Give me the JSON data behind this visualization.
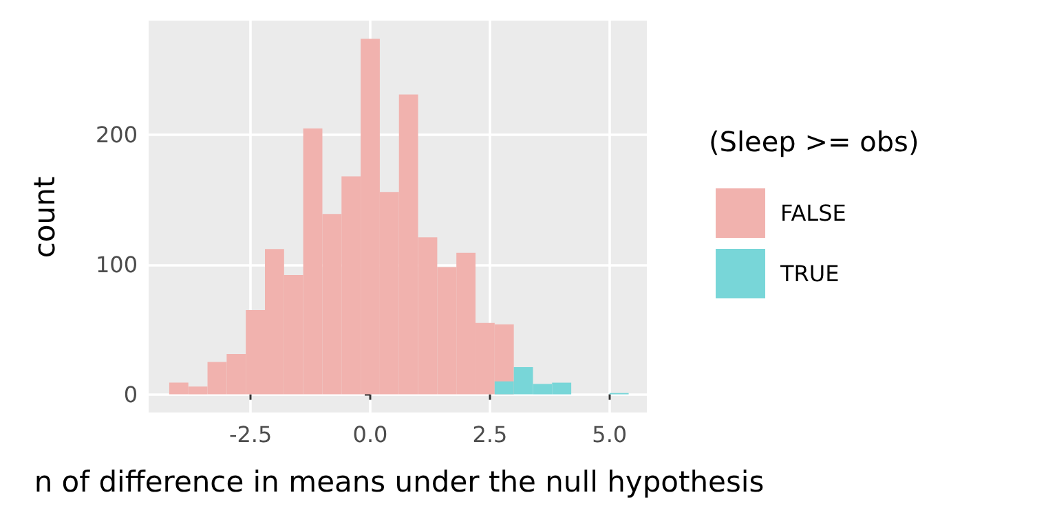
{
  "chart_data": {
    "type": "histogram",
    "xlabel": "n of difference in means under the null hypothesis",
    "ylabel": "count",
    "legend_title": "(Sleep >= obs)",
    "bins": [
      -4.2,
      -3.8,
      -3.4,
      -3.0,
      -2.6,
      -2.2,
      -1.8,
      -1.4,
      -1.0,
      -0.6,
      -0.2,
      0.2,
      0.6,
      1.0,
      1.4,
      1.8,
      2.2,
      2.6,
      3.0,
      3.4,
      3.8,
      4.2,
      4.6,
      5.0,
      5.4
    ],
    "series": [
      {
        "name": "FALSE",
        "color": "#f1b2ae",
        "values": [
          9,
          6,
          25,
          31,
          65,
          112,
          92,
          205,
          139,
          168,
          274,
          156,
          231,
          121,
          98,
          109,
          55,
          54,
          0,
          0,
          0,
          0,
          0,
          0
        ]
      },
      {
        "name": "TRUE",
        "color": "#78d6d8",
        "values": [
          0,
          0,
          0,
          0,
          0,
          0,
          0,
          0,
          0,
          0,
          0,
          0,
          0,
          0,
          0,
          0,
          0,
          10,
          21,
          8,
          9,
          0,
          0,
          1
        ]
      }
    ],
    "xlim": [
      -4.63,
      5.78
    ],
    "xticks": [
      -2.5,
      {
        "value": 0,
        "label": "0.0"
      },
      2.5,
      {
        "value": 5,
        "label": "5.0"
      }
    ],
    "ylim": [
      -14,
      288
    ],
    "yticks": [
      0,
      100,
      200
    ],
    "grid": true,
    "legend": "right"
  }
}
